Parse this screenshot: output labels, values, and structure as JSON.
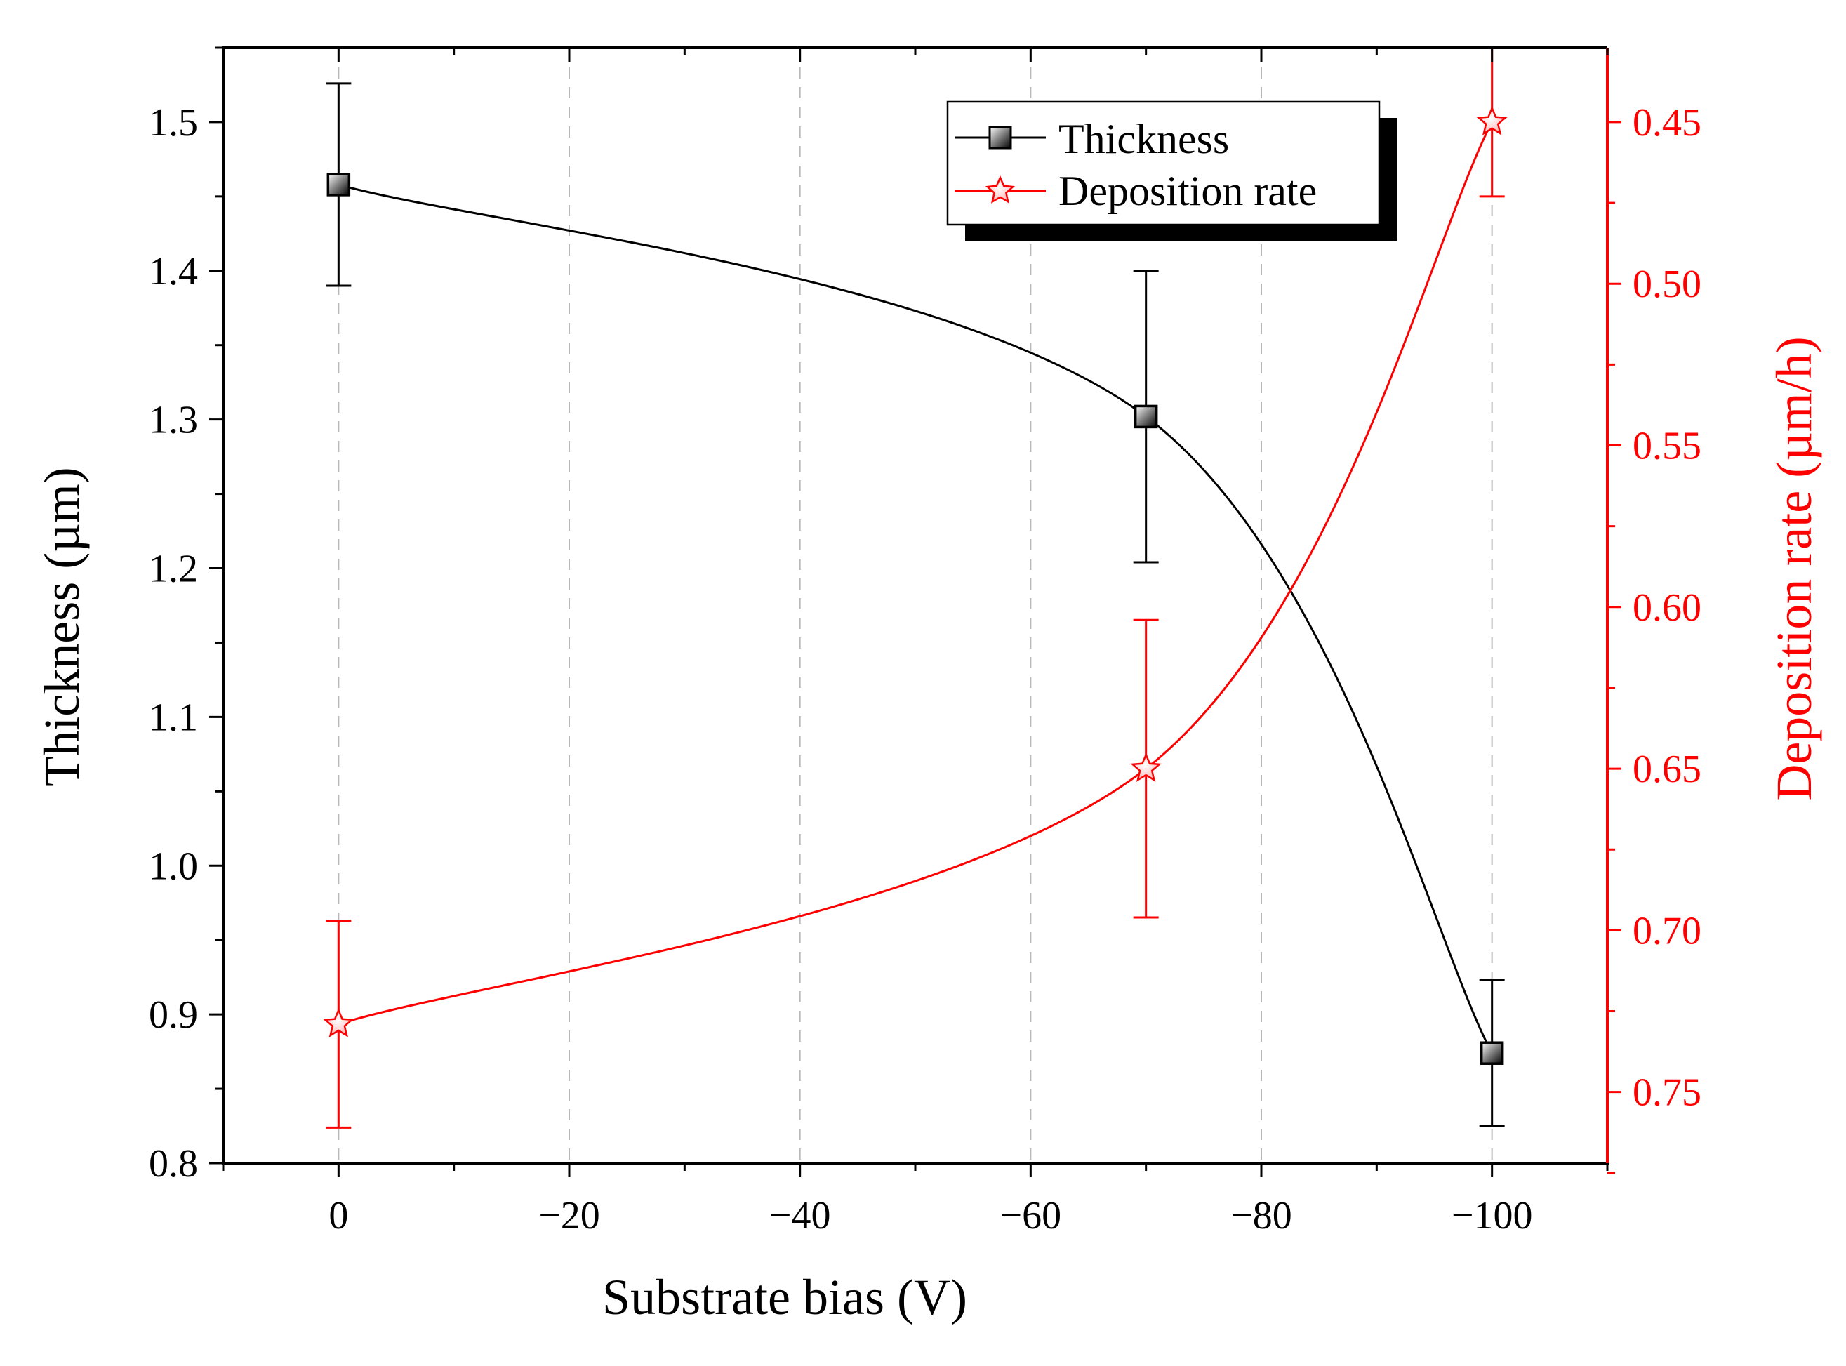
{
  "chart_data": {
    "type": "line",
    "xlabel": "Substrate bias (V)",
    "ylabel_left": "Thickness (µm)",
    "ylabel_right": "Deposition rate  (µm/h)",
    "xlim": [
      10,
      -110
    ],
    "x_ticks": [
      0,
      -20,
      -40,
      -60,
      -80,
      -100
    ],
    "x_tick_labels": [
      "0",
      "−20",
      "−40",
      "−60",
      "−80",
      "−100"
    ],
    "ylim_left": [
      0.8,
      1.55
    ],
    "y_ticks_left": [
      0.8,
      0.9,
      1.0,
      1.1,
      1.2,
      1.3,
      1.4,
      1.5
    ],
    "y_tick_labels_left": [
      "0.8",
      "0.9",
      "1.0",
      "1.1",
      "1.2",
      "1.3",
      "1.4",
      "1.5"
    ],
    "ylim_right": [
      0.772,
      0.427
    ],
    "right_axis_inverted": true,
    "y_ticks_right": [
      0.45,
      0.5,
      0.55,
      0.6,
      0.65,
      0.7,
      0.75
    ],
    "y_tick_labels_right": [
      "0.45",
      "0.50",
      "0.55",
      "0.60",
      "0.65",
      "0.70",
      "0.75"
    ],
    "vertical_gridlines": "dashed, at x ticks",
    "legend_position": "top-right",
    "series": [
      {
        "name": "Thickness",
        "axis": "left",
        "marker": "square",
        "color": "#000000",
        "x": [
          0,
          -70,
          -100
        ],
        "y": [
          1.458,
          1.302,
          0.874
        ],
        "yerr": [
          0.068,
          0.098,
          0.049
        ]
      },
      {
        "name": "Deposition rate",
        "axis": "right",
        "marker": "star",
        "color": "#ff0000",
        "x": [
          0,
          -70,
          -100
        ],
        "y": [
          0.729,
          0.65,
          0.45
        ],
        "yerr": [
          0.032,
          0.046,
          0.023
        ]
      }
    ]
  }
}
